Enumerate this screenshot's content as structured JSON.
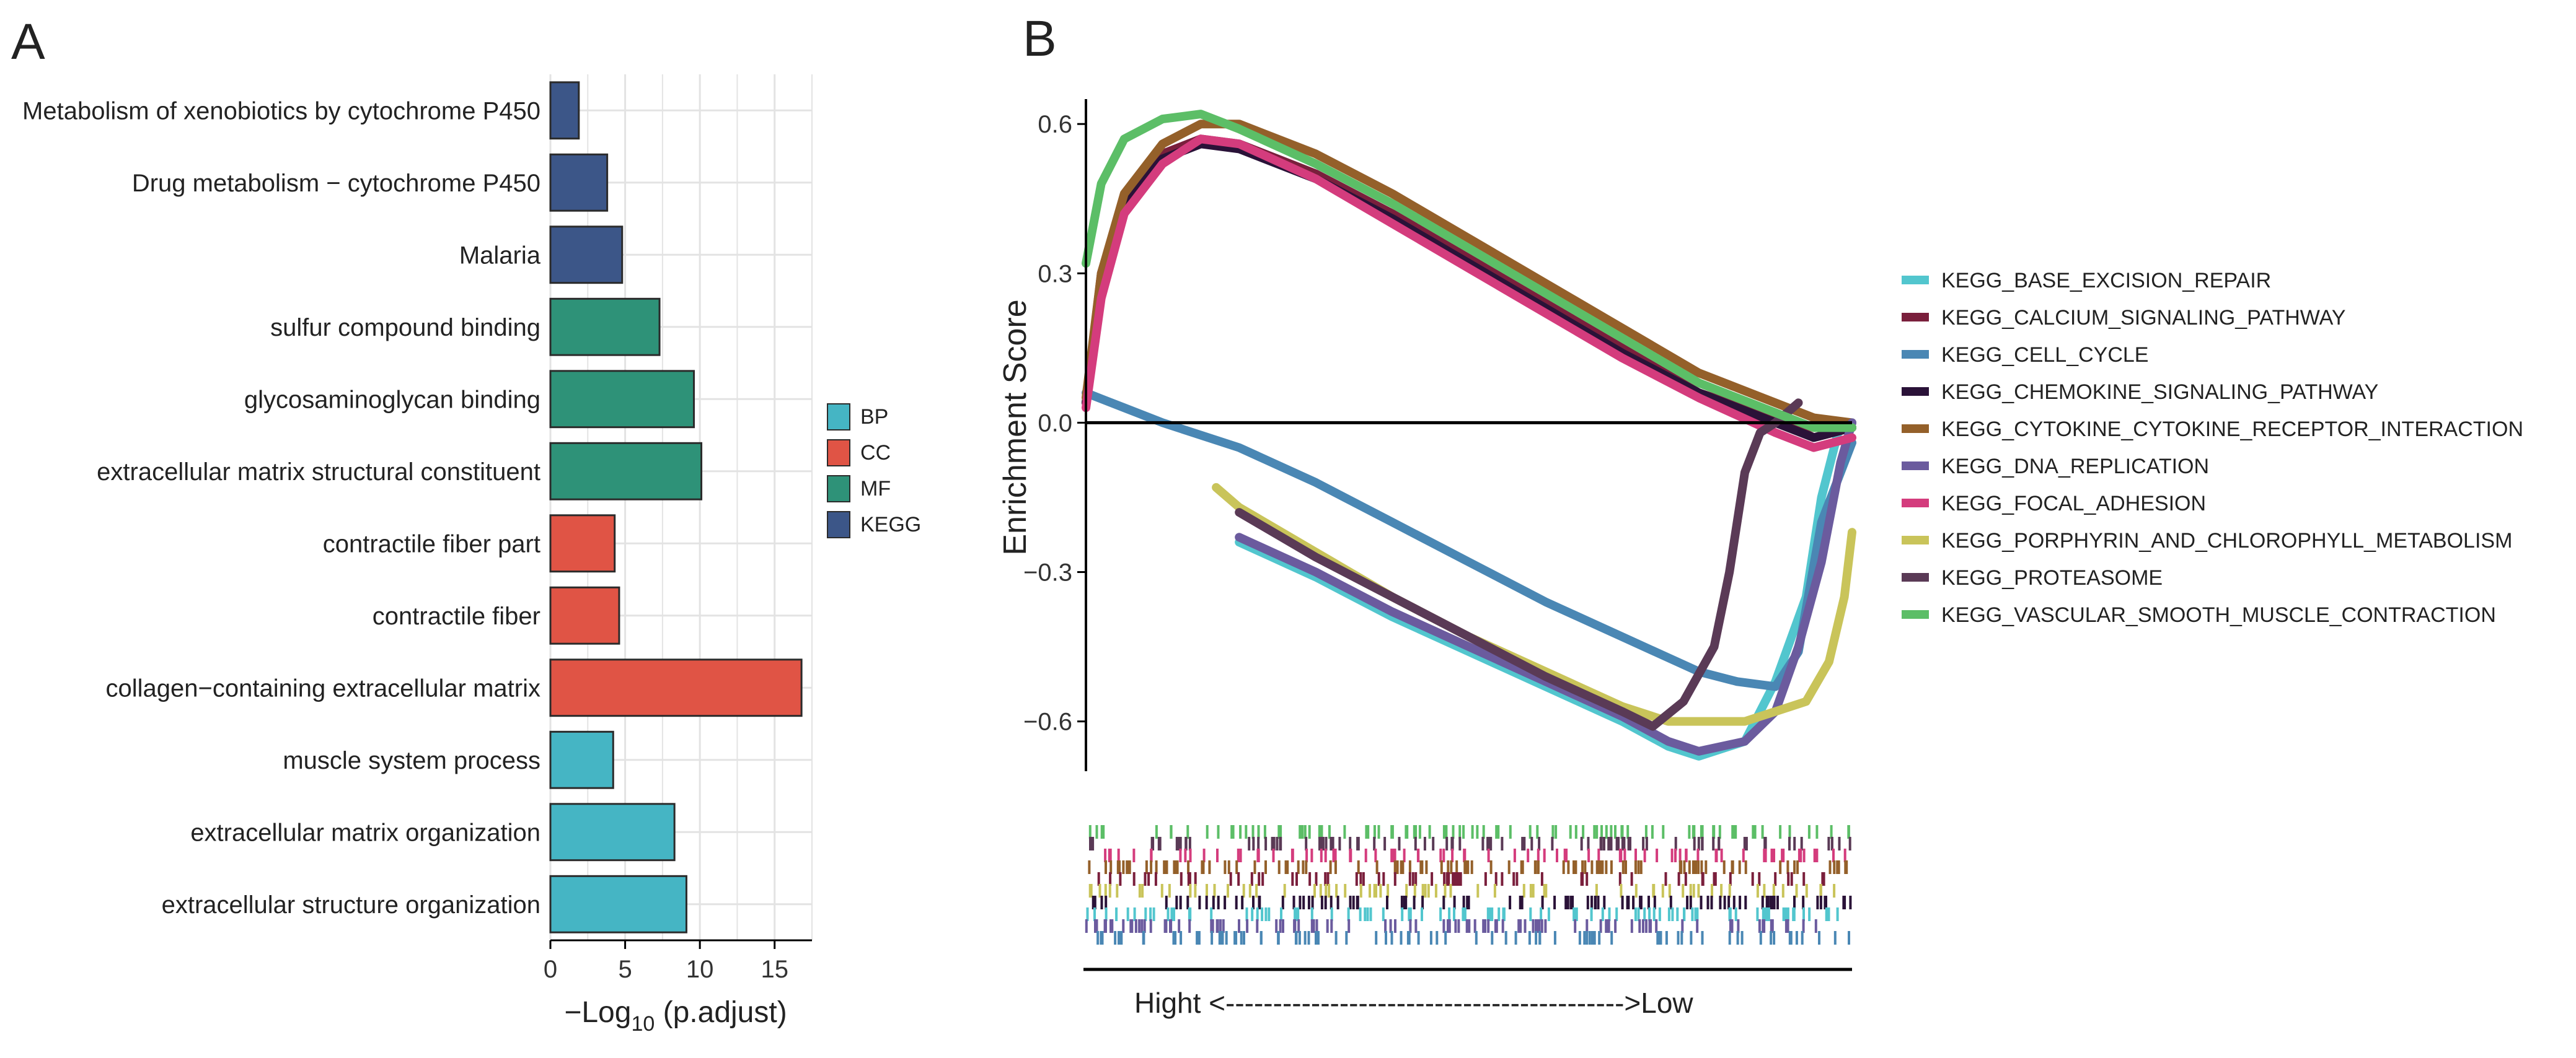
{
  "panels": {
    "a": {
      "letter": "A"
    },
    "b": {
      "letter": "B"
    }
  },
  "colors": {
    "BP": "#45B5C4",
    "CC": "#E05445",
    "MF": "#2E9278",
    "KEGG": "#3C5688",
    "grid": "#E3E3E3",
    "axis": "#000000"
  },
  "chart_data": [
    {
      "id": "go-kegg-bar",
      "type": "bar",
      "orientation": "horizontal",
      "title": "",
      "xlabel": "-Log10 (p.adjust)",
      "xlabel_parts": {
        "main": "−Log",
        "sub": "10",
        "tail": " (p.adjust)"
      },
      "ylabel": "",
      "xlim": [
        0,
        17.5
      ],
      "xticks": [
        0,
        5,
        10,
        15
      ],
      "grid": true,
      "legend_position": "right",
      "legend": [
        "BP",
        "CC",
        "MF",
        "KEGG"
      ],
      "categories": [
        "Metabolism of xenobiotics by cytochrome P450",
        "Drug metabolism − cytochrome P450",
        "Malaria",
        "sulfur compound binding",
        "glycosaminoglycan binding",
        "extracellular matrix structural constituent",
        "contractile fiber part",
        "contractile fiber",
        "collagen−containing extracellular matrix",
        "muscle system process",
        "extracellular matrix organization",
        "extracellular structure organization"
      ],
      "groups": [
        "KEGG",
        "KEGG",
        "KEGG",
        "MF",
        "MF",
        "MF",
        "CC",
        "CC",
        "CC",
        "BP",
        "BP",
        "BP"
      ],
      "values": [
        1.9,
        3.8,
        4.8,
        7.3,
        9.6,
        10.1,
        4.3,
        4.6,
        16.8,
        4.2,
        8.3,
        9.1
      ]
    },
    {
      "id": "gsea-running-es",
      "type": "line",
      "title": "",
      "xlabel": "Hight <------------------------------------------>Low",
      "ylabel": "Enrichment Score",
      "xlim": [
        0,
        1
      ],
      "ylim": [
        -0.7,
        0.65
      ],
      "yticks": [
        0.6,
        0.3,
        0.0,
        -0.3,
        -0.6
      ],
      "ytick_labels": [
        "0.6",
        "0.3",
        "0.0",
        "−0.3",
        "−0.6"
      ],
      "grid": false,
      "legend_position": "right",
      "series": [
        {
          "name": "KEGG_BASE_EXCISION_REPAIR",
          "color": "#52C6CE",
          "x": [
            0.2,
            0.3,
            0.4,
            0.5,
            0.6,
            0.7,
            0.76,
            0.8,
            0.86,
            0.9,
            0.94,
            0.96,
            0.985,
            1.0
          ],
          "y": [
            -0.24,
            -0.31,
            -0.39,
            -0.46,
            -0.53,
            -0.6,
            -0.65,
            -0.67,
            -0.64,
            -0.52,
            -0.35,
            -0.15,
            0.0,
            0.0
          ]
        },
        {
          "name": "KEGG_CALCIUM_SIGNALING_PATHWAY",
          "color": "#7A1F3C",
          "x": [
            0.0,
            0.02,
            0.05,
            0.1,
            0.15,
            0.2,
            0.3,
            0.4,
            0.5,
            0.6,
            0.7,
            0.8,
            0.9,
            0.95,
            1.0
          ],
          "y": [
            0.04,
            0.3,
            0.45,
            0.54,
            0.57,
            0.56,
            0.5,
            0.42,
            0.33,
            0.24,
            0.15,
            0.06,
            0.01,
            -0.03,
            -0.01
          ]
        },
        {
          "name": "KEGG_CELL_CYCLE",
          "color": "#4A87B4",
          "x": [
            0.0,
            0.05,
            0.1,
            0.2,
            0.3,
            0.4,
            0.5,
            0.6,
            0.7,
            0.8,
            0.85,
            0.9,
            0.93,
            0.96,
            1.0
          ],
          "y": [
            0.06,
            0.03,
            0.0,
            -0.05,
            -0.12,
            -0.2,
            -0.28,
            -0.36,
            -0.43,
            -0.5,
            -0.52,
            -0.53,
            -0.46,
            -0.2,
            -0.04
          ]
        },
        {
          "name": "KEGG_CHEMOKINE_SIGNALING_PATHWAY",
          "color": "#2A1238",
          "x": [
            0.0,
            0.02,
            0.05,
            0.1,
            0.15,
            0.2,
            0.3,
            0.4,
            0.5,
            0.6,
            0.7,
            0.8,
            0.9,
            0.95,
            1.0
          ],
          "y": [
            0.04,
            0.28,
            0.44,
            0.53,
            0.56,
            0.55,
            0.49,
            0.41,
            0.32,
            0.23,
            0.14,
            0.06,
            0.0,
            -0.03,
            -0.01
          ]
        },
        {
          "name": "KEGG_CYTOKINE_CYTOKINE_RECEPTOR_INTERACTION",
          "color": "#94602A",
          "x": [
            0.0,
            0.02,
            0.05,
            0.1,
            0.15,
            0.2,
            0.3,
            0.4,
            0.5,
            0.6,
            0.7,
            0.8,
            0.9,
            0.95,
            1.0
          ],
          "y": [
            0.05,
            0.3,
            0.46,
            0.56,
            0.6,
            0.6,
            0.54,
            0.46,
            0.37,
            0.28,
            0.19,
            0.1,
            0.04,
            0.01,
            0.0
          ]
        },
        {
          "name": "KEGG_DNA_REPLICATION",
          "color": "#6B5B9E",
          "x": [
            0.2,
            0.3,
            0.4,
            0.5,
            0.6,
            0.7,
            0.76,
            0.8,
            0.86,
            0.9,
            0.93,
            0.96,
            0.985,
            1.0
          ],
          "y": [
            -0.23,
            -0.3,
            -0.38,
            -0.45,
            -0.52,
            -0.59,
            -0.64,
            -0.66,
            -0.64,
            -0.58,
            -0.45,
            -0.28,
            -0.08,
            0.0
          ]
        },
        {
          "name": "KEGG_FOCAL_ADHESION",
          "color": "#D43C7D",
          "x": [
            0.0,
            0.02,
            0.05,
            0.1,
            0.15,
            0.2,
            0.3,
            0.4,
            0.5,
            0.6,
            0.7,
            0.8,
            0.9,
            0.95,
            1.0
          ],
          "y": [
            0.03,
            0.25,
            0.42,
            0.52,
            0.57,
            0.56,
            0.49,
            0.4,
            0.31,
            0.22,
            0.13,
            0.05,
            -0.02,
            -0.05,
            -0.03
          ]
        },
        {
          "name": "KEGG_PORPHYRIN_AND_CHLOROPHYLL_METABOLISM",
          "color": "#C9C45A",
          "x": [
            0.17,
            0.2,
            0.3,
            0.4,
            0.5,
            0.6,
            0.7,
            0.76,
            0.8,
            0.86,
            0.9,
            0.94,
            0.97,
            0.99,
            1.0
          ],
          "y": [
            -0.13,
            -0.17,
            -0.26,
            -0.35,
            -0.43,
            -0.5,
            -0.57,
            -0.6,
            -0.6,
            -0.6,
            -0.58,
            -0.56,
            -0.48,
            -0.35,
            -0.22
          ]
        },
        {
          "name": "KEGG_PROTEASOME",
          "color": "#5A3A56",
          "x": [
            0.2,
            0.3,
            0.4,
            0.5,
            0.6,
            0.7,
            0.74,
            0.78,
            0.82,
            0.84,
            0.86,
            0.88,
            0.9,
            0.93
          ],
          "y": [
            -0.18,
            -0.27,
            -0.35,
            -0.43,
            -0.51,
            -0.58,
            -0.61,
            -0.56,
            -0.45,
            -0.3,
            -0.1,
            -0.02,
            0.0,
            0.04
          ]
        },
        {
          "name": "KEGG_VASCULAR_SMOOTH_MUSCLE_CONTRACTION",
          "color": "#5CBE67",
          "x": [
            0.0,
            0.02,
            0.05,
            0.1,
            0.15,
            0.2,
            0.3,
            0.4,
            0.5,
            0.6,
            0.7,
            0.8,
            0.9,
            0.95,
            1.0
          ],
          "y": [
            0.32,
            0.48,
            0.57,
            0.61,
            0.62,
            0.59,
            0.52,
            0.44,
            0.35,
            0.26,
            0.17,
            0.08,
            0.02,
            -0.01,
            -0.01
          ]
        }
      ]
    }
  ]
}
